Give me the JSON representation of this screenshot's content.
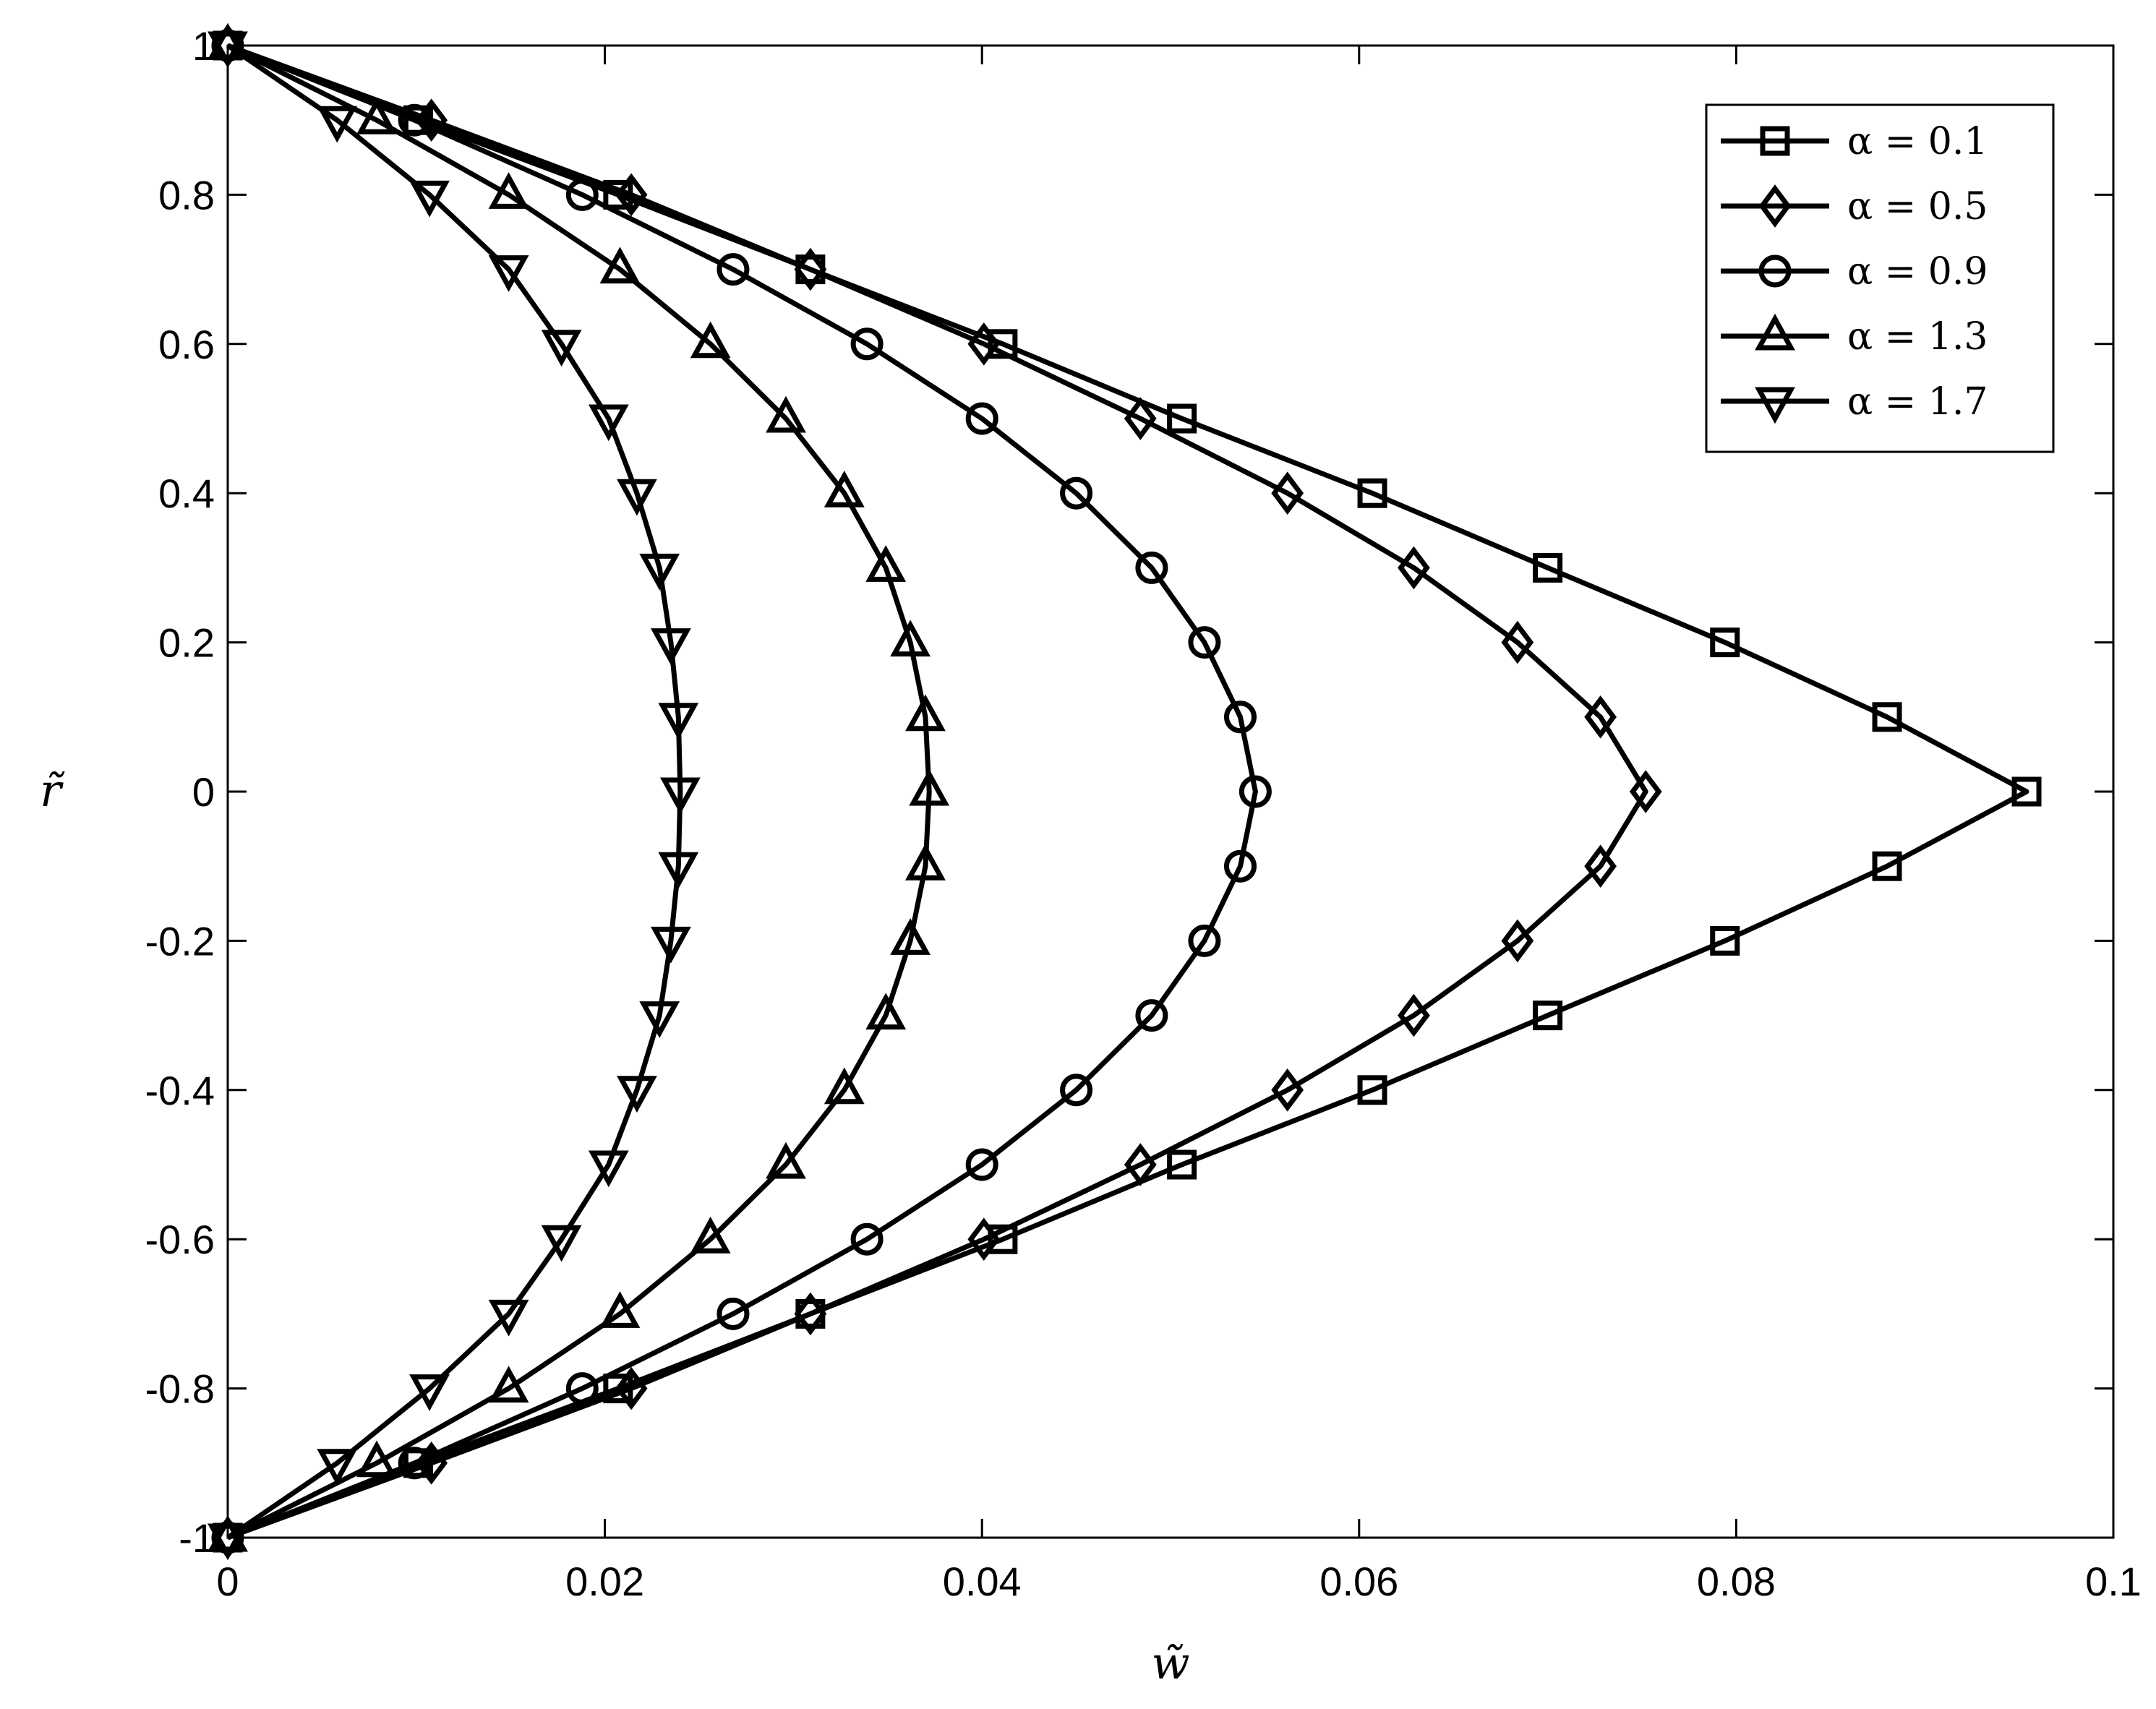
{
  "chart_data": {
    "type": "line",
    "xlabel": "w̃",
    "ylabel": "r̃",
    "xlim": [
      0,
      0.1
    ],
    "ylim": [
      -1,
      1
    ],
    "xticks": [
      0,
      0.02,
      0.04,
      0.06,
      0.08,
      0.1
    ],
    "xtick_labels": [
      "0",
      "0.02",
      "0.04",
      "0.06",
      "0.08",
      "0.1"
    ],
    "yticks": [
      -1,
      -0.8,
      -0.6,
      -0.4,
      -0.2,
      0,
      0.2,
      0.4,
      0.6,
      0.8,
      1
    ],
    "ytick_labels": [
      "-1",
      "-0.8",
      "-0.6",
      "-0.4",
      "-0.2",
      "0",
      "0.2",
      "0.4",
      "0.6",
      "0.8",
      "1"
    ],
    "grid": false,
    "legend_position": "top-right",
    "y": [
      1,
      0.9,
      0.8,
      0.7,
      0.6,
      0.5,
      0.4,
      0.3,
      0.2,
      0.1,
      0,
      -0.1,
      -0.2,
      -0.3,
      -0.4,
      -0.5,
      -0.6,
      -0.7,
      -0.8,
      -0.9,
      -1
    ],
    "series": [
      {
        "name": "α = 0.1",
        "marker": "square",
        "x": [
          0,
          0.0101,
          0.0207,
          0.0309,
          0.0411,
          0.0506,
          0.0607,
          0.07,
          0.0794,
          0.088,
          0.0954,
          0.088,
          0.0794,
          0.07,
          0.0607,
          0.0506,
          0.0411,
          0.0309,
          0.0207,
          0.0101,
          0
        ]
      },
      {
        "name": "α = 0.5",
        "marker": "diamond",
        "x": [
          0,
          0.0108,
          0.0214,
          0.0309,
          0.0401,
          0.0484,
          0.0562,
          0.0629,
          0.0684,
          0.0728,
          0.0752,
          0.0728,
          0.0684,
          0.0629,
          0.0562,
          0.0484,
          0.0401,
          0.0309,
          0.0214,
          0.0108,
          0
        ]
      },
      {
        "name": "α = 0.9",
        "marker": "circle",
        "x": [
          0,
          0.0099,
          0.0188,
          0.0268,
          0.0339,
          0.04,
          0.045,
          0.049,
          0.0518,
          0.0537,
          0.0545,
          0.0537,
          0.0518,
          0.049,
          0.045,
          0.04,
          0.0339,
          0.0268,
          0.0188,
          0.0099,
          0
        ]
      },
      {
        "name": "α = 1.3",
        "marker": "triangle-up",
        "x": [
          0,
          0.0079,
          0.0149,
          0.0208,
          0.0256,
          0.0296,
          0.0327,
          0.0349,
          0.0362,
          0.037,
          0.0372,
          0.037,
          0.0362,
          0.0349,
          0.0327,
          0.0296,
          0.0256,
          0.0208,
          0.0149,
          0.0079,
          0
        ]
      },
      {
        "name": "α = 1.7",
        "marker": "triangle-down",
        "x": [
          0,
          0.0058,
          0.0107,
          0.0149,
          0.0177,
          0.0202,
          0.0217,
          0.0229,
          0.0235,
          0.0239,
          0.024,
          0.0239,
          0.0235,
          0.0229,
          0.0217,
          0.0202,
          0.0177,
          0.0149,
          0.0107,
          0.0058,
          0
        ]
      }
    ]
  }
}
